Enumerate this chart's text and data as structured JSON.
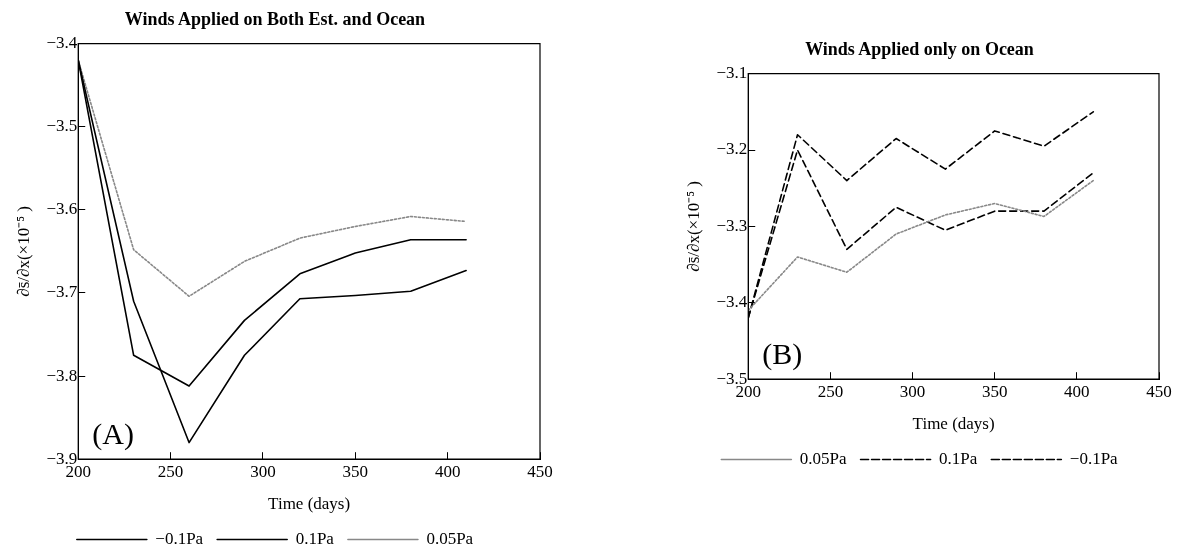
{
  "chart_data": [
    {
      "type": "line",
      "title": "Winds Applied on Both Est. and Ocean",
      "xlabel": "Time (days)",
      "ylabel": "∂s̄/∂x(×10⁻⁵ )",
      "annotations": [
        "(A)"
      ],
      "x": [
        200,
        230,
        260,
        290,
        320,
        350,
        380,
        410
      ],
      "xlim": [
        200,
        450
      ],
      "xticks": [
        200,
        250,
        300,
        350,
        400,
        450
      ],
      "ylim": [
        -3.9,
        -3.4
      ],
      "yticks": [
        -3.9,
        -3.8,
        -3.7,
        -3.6,
        -3.5,
        -3.4
      ],
      "grid": false,
      "legend": "bottom",
      "marker": "none",
      "series": [
        {
          "name": "−0.1Pa",
          "color": "#000000",
          "line_style": "solid",
          "values": [
            -3.42,
            -3.775,
            -3.812,
            -3.733,
            -3.677,
            -3.652,
            -3.636,
            -3.636
          ]
        },
        {
          "name": "0.1Pa",
          "color": "#000000",
          "line_style": "solid",
          "values": [
            -3.42,
            -3.71,
            -3.88,
            -3.775,
            -3.707,
            -3.703,
            -3.698,
            -3.673
          ]
        },
        {
          "name": "0.05Pa",
          "color": "#888888",
          "line_style": "dotted",
          "values": [
            -3.42,
            -3.648,
            -3.704,
            -3.662,
            -3.634,
            -3.62,
            -3.608,
            -3.614
          ]
        }
      ]
    },
    {
      "type": "line",
      "title": "Winds Applied only on Ocean",
      "xlabel": "Time (days)",
      "ylabel": "∂s̄/∂x(×10⁻⁵ )",
      "annotations": [
        "(B)"
      ],
      "x": [
        200,
        230,
        260,
        290,
        320,
        350,
        380,
        410
      ],
      "xlim": [
        200,
        450
      ],
      "xticks": [
        200,
        250,
        300,
        350,
        400,
        450
      ],
      "ylim": [
        -3.5,
        -3.1
      ],
      "yticks": [
        -3.5,
        -3.4,
        -3.3,
        -3.2,
        -3.1
      ],
      "grid": false,
      "legend": "bottom",
      "marker": "none",
      "series": [
        {
          "name": "0.05Pa",
          "color": "#888888",
          "line_style": "dotted",
          "values": [
            -3.41,
            -3.34,
            -3.36,
            -3.31,
            -3.285,
            -3.27,
            -3.287,
            -3.24
          ]
        },
        {
          "name": "0.1Pa",
          "color": "#000000",
          "line_style": "dashed",
          "values": [
            -3.42,
            -3.18,
            -3.24,
            -3.185,
            -3.225,
            -3.175,
            -3.195,
            -3.15
          ]
        },
        {
          "name": "−0.1Pa",
          "color": "#000000",
          "line_style": "dashed",
          "values": [
            -3.42,
            -3.2,
            -3.33,
            -3.275,
            -3.305,
            -3.28,
            -3.28,
            -3.23
          ]
        }
      ]
    }
  ]
}
